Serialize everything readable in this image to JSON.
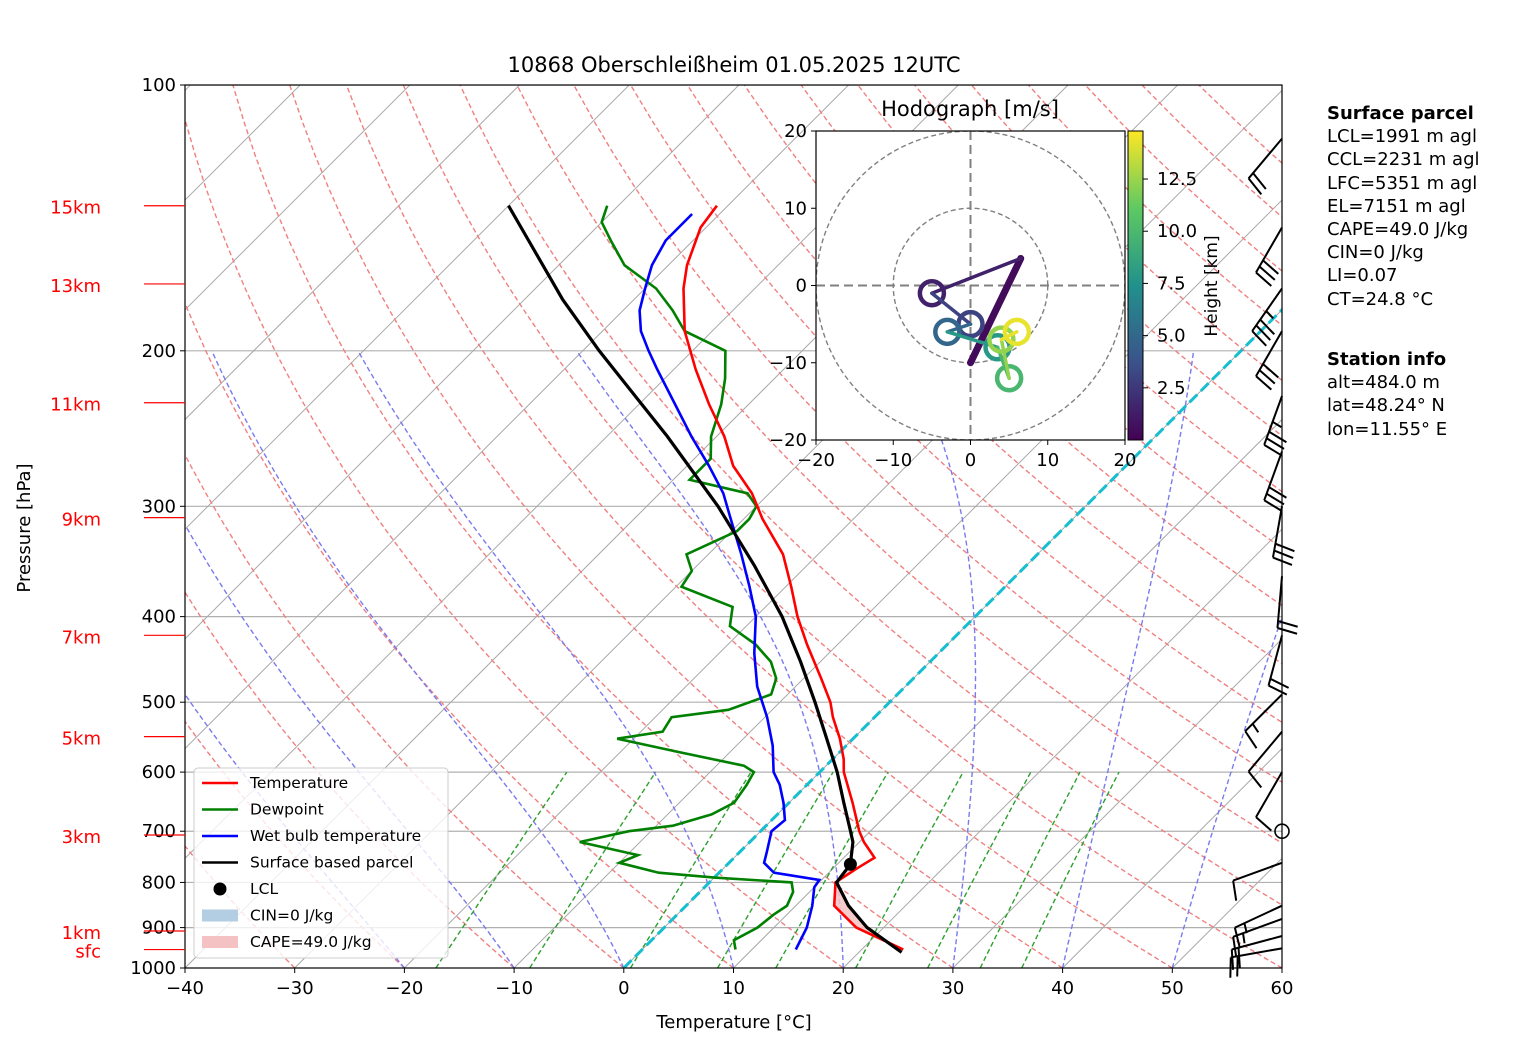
{
  "title": "10868 Oberschleißheim 01.05.2025 12UTC",
  "xlabel": "Temperature [°C]",
  "ylabel": "Pressure [hPa]",
  "surface_parcel": {
    "heading": "Surface parcel",
    "lines": [
      "LCL=1991 m agl",
      "CCL=2231 m agl",
      "LFC=5351 m agl",
      "EL=7151 m agl",
      "CAPE=49.0 J/kg",
      "CIN=0 J/kg",
      "LI=0.07",
      "CT=24.8 °C"
    ]
  },
  "station_info": {
    "heading": "Station info",
    "lines": [
      "alt=484.0 m",
      "lat=48.24° N",
      "lon=11.55° E"
    ]
  },
  "hodograph": {
    "title": "Hodograph [m/s]",
    "xlim": [
      -20,
      20
    ],
    "ylim": [
      -20,
      20
    ],
    "xticks": [
      "−20",
      "−10",
      "0",
      "10",
      "20"
    ],
    "yticks": [
      "20",
      "10",
      "0",
      "−10",
      "−20"
    ],
    "colorbar_label": "Height [km]",
    "colorbar_ticks": [
      "12.5",
      "10.0",
      "7.5",
      "5.0",
      "2.5"
    ]
  },
  "height_labels": [
    {
      "label": "15km",
      "p": 137
    },
    {
      "label": "13km",
      "p": 168
    },
    {
      "label": "11km",
      "p": 229
    },
    {
      "label": "9km",
      "p": 309
    },
    {
      "label": "7km",
      "p": 420
    },
    {
      "label": "5km",
      "p": 547
    },
    {
      "label": "3km",
      "p": 707
    },
    {
      "label": "1km",
      "p": 908
    },
    {
      "label": "sfc",
      "p": 953
    }
  ],
  "legend": [
    {
      "label": "Temperature",
      "color": "#ff0000",
      "kind": "line"
    },
    {
      "label": "Dewpoint",
      "color": "#008000",
      "kind": "line"
    },
    {
      "label": "Wet bulb temperature",
      "color": "#0000ff",
      "kind": "line"
    },
    {
      "label": "Surface based parcel",
      "color": "#000000",
      "kind": "line"
    },
    {
      "label": "LCL",
      "color": "#000000",
      "kind": "dot"
    },
    {
      "label": "CIN=0 J/kg",
      "color": "#b3cde3",
      "kind": "patch"
    },
    {
      "label": "CAPE=49.0 J/kg",
      "color": "#f4c2c2",
      "kind": "patch"
    }
  ],
  "chart_data": {
    "type": "line",
    "xlim": [
      -40,
      60
    ],
    "ylim": [
      1000,
      100
    ],
    "y_scale": "log",
    "xticks": [
      "−40",
      "−30",
      "−20",
      "−10",
      "0",
      "10",
      "20",
      "30",
      "40",
      "50",
      "60"
    ],
    "yticks": [
      "100",
      "200",
      "300",
      "400",
      "500",
      "600",
      "700",
      "800",
      "900",
      "1000"
    ],
    "isotherm_tick_values": [
      -40,
      -30,
      -20,
      -10,
      0,
      10,
      20,
      30,
      40,
      50,
      60
    ],
    "temperature": [
      [
        953,
        23.8
      ],
      [
        900,
        17.5
      ],
      [
        850,
        13.5
      ],
      [
        800,
        11.5
      ],
      [
        770,
        12.2
      ],
      [
        750,
        12.8
      ],
      [
        720,
        10.4
      ],
      [
        700,
        9.0
      ],
      [
        650,
        5.8
      ],
      [
        600,
        2.2
      ],
      [
        580,
        1.0
      ],
      [
        550,
        -1.2
      ],
      [
        520,
        -3.8
      ],
      [
        500,
        -5.4
      ],
      [
        470,
        -8.4
      ],
      [
        430,
        -12.8
      ],
      [
        400,
        -16.2
      ],
      [
        370,
        -19.5
      ],
      [
        340,
        -23.2
      ],
      [
        310,
        -28.3
      ],
      [
        290,
        -31.6
      ],
      [
        270,
        -35.8
      ],
      [
        250,
        -39.3
      ],
      [
        230,
        -43.6
      ],
      [
        210,
        -48.0
      ],
      [
        190,
        -52.5
      ],
      [
        170,
        -56.5
      ],
      [
        160,
        -58.3
      ],
      [
        145,
        -60.5
      ],
      [
        137,
        -61.0
      ]
    ],
    "dewpoint": [
      [
        953,
        8.5
      ],
      [
        930,
        7.5
      ],
      [
        900,
        8.5
      ],
      [
        870,
        8.8
      ],
      [
        850,
        9.2
      ],
      [
        820,
        8.5
      ],
      [
        800,
        7.5
      ],
      [
        790,
        0.0
      ],
      [
        780,
        -5.5
      ],
      [
        760,
        -10.0
      ],
      [
        745,
        -9.0
      ],
      [
        720,
        -15.5
      ],
      [
        700,
        -12.0
      ],
      [
        690,
        -8.5
      ],
      [
        670,
        -6.0
      ],
      [
        650,
        -5.0
      ],
      [
        620,
        -5.5
      ],
      [
        600,
        -6.0
      ],
      [
        590,
        -7.5
      ],
      [
        570,
        -14.5
      ],
      [
        550,
        -21.5
      ],
      [
        540,
        -18.0
      ],
      [
        520,
        -18.5
      ],
      [
        510,
        -14.0
      ],
      [
        490,
        -11.5
      ],
      [
        470,
        -12.5
      ],
      [
        450,
        -14.5
      ],
      [
        430,
        -17.5
      ],
      [
        410,
        -21.5
      ],
      [
        390,
        -23.0
      ],
      [
        370,
        -29.5
      ],
      [
        355,
        -30.0
      ],
      [
        340,
        -32.0
      ],
      [
        320,
        -29.5
      ],
      [
        310,
        -29.5
      ],
      [
        300,
        -30.0
      ],
      [
        290,
        -32.0
      ],
      [
        280,
        -38.5
      ],
      [
        265,
        -38.5
      ],
      [
        250,
        -40.5
      ],
      [
        230,
        -42.5
      ],
      [
        215,
        -44.5
      ],
      [
        200,
        -47.0
      ],
      [
        190,
        -52.5
      ],
      [
        180,
        -55.5
      ],
      [
        170,
        -59.0
      ],
      [
        160,
        -64.0
      ],
      [
        150,
        -67.5
      ],
      [
        143,
        -70.0
      ],
      [
        137,
        -71.0
      ]
    ],
    "wetbulb": [
      [
        953,
        14.0
      ],
      [
        900,
        13.0
      ],
      [
        850,
        11.5
      ],
      [
        810,
        10.0
      ],
      [
        795,
        9.8
      ],
      [
        780,
        5.0
      ],
      [
        760,
        3.2
      ],
      [
        740,
        2.5
      ],
      [
        700,
        1.0
      ],
      [
        680,
        1.2
      ],
      [
        650,
        -0.5
      ],
      [
        620,
        -2.5
      ],
      [
        600,
        -4.2
      ],
      [
        560,
        -6.7
      ],
      [
        520,
        -9.8
      ],
      [
        480,
        -13.5
      ],
      [
        440,
        -16.8
      ],
      [
        400,
        -20.0
      ],
      [
        370,
        -23.3
      ],
      [
        340,
        -27.0
      ],
      [
        310,
        -31.2
      ],
      [
        290,
        -34.2
      ],
      [
        270,
        -38.0
      ],
      [
        250,
        -42.3
      ],
      [
        230,
        -46.7
      ],
      [
        210,
        -51.5
      ],
      [
        200,
        -54.0
      ],
      [
        190,
        -56.5
      ],
      [
        180,
        -58.5
      ],
      [
        170,
        -60.0
      ],
      [
        160,
        -61.5
      ],
      [
        150,
        -62.5
      ],
      [
        140,
        -62.5
      ]
    ],
    "parcel": [
      [
        960,
        23.9
      ],
      [
        900,
        18.5
      ],
      [
        850,
        14.8
      ],
      [
        800,
        11.6
      ],
      [
        763,
        11.2
      ],
      [
        720,
        9.4
      ],
      [
        700,
        8.2
      ],
      [
        650,
        5.0
      ],
      [
        600,
        1.6
      ],
      [
        550,
        -2.4
      ],
      [
        500,
        -6.8
      ],
      [
        450,
        -11.8
      ],
      [
        400,
        -17.6
      ],
      [
        350,
        -24.8
      ],
      [
        300,
        -33.5
      ],
      [
        250,
        -44.5
      ],
      [
        200,
        -58.5
      ],
      [
        175,
        -66.5
      ],
      [
        150,
        -75.0
      ],
      [
        137,
        -80.0
      ]
    ],
    "lcl": {
      "p": 763,
      "t": 11.2
    },
    "cape_j_kg": 49.0,
    "cin_j_kg": 0,
    "wind_barbs": [
      {
        "p": 950,
        "dir": 260,
        "kt": 22
      },
      {
        "p": 920,
        "dir": 255,
        "kt": 18
      },
      {
        "p": 880,
        "dir": 250,
        "kt": 16
      },
      {
        "p": 850,
        "dir": 245,
        "kt": 14
      },
      {
        "p": 760,
        "dir": 250,
        "kt": 10
      },
      {
        "p": 700,
        "dir": 0,
        "kt": 0
      },
      {
        "p": 600,
        "dir": 210,
        "kt": 8
      },
      {
        "p": 540,
        "dir": 220,
        "kt": 12
      },
      {
        "p": 490,
        "dir": 225,
        "kt": 14
      },
      {
        "p": 420,
        "dir": 195,
        "kt": 18
      },
      {
        "p": 360,
        "dir": 185,
        "kt": 20
      },
      {
        "p": 300,
        "dir": 190,
        "kt": 28
      },
      {
        "p": 260,
        "dir": 200,
        "kt": 30
      },
      {
        "p": 225,
        "dir": 200,
        "kt": 34
      },
      {
        "p": 190,
        "dir": 210,
        "kt": 32
      },
      {
        "p": 170,
        "dir": 215,
        "kt": 34
      },
      {
        "p": 145,
        "dir": 210,
        "kt": 28
      },
      {
        "p": 115,
        "dir": 220,
        "kt": 20
      }
    ],
    "hodograph_segments": [
      {
        "height_km": 0.5,
        "u": 6.5,
        "v": 3.5,
        "u0": 0.0,
        "v0": -10.0
      },
      {
        "height_km": 1.5,
        "u": -5.0,
        "v": -1.0
      },
      {
        "height_km": 3.0,
        "u": 0.0,
        "v": -5.0
      },
      {
        "height_km": 5.0,
        "u": -3.0,
        "v": -6.0
      },
      {
        "height_km": 8.0,
        "u": 3.5,
        "v": -8.0
      },
      {
        "height_km": 10.0,
        "u": 5.0,
        "v": -12.0
      },
      {
        "height_km": 12.5,
        "u": 4.0,
        "v": -7.0
      },
      {
        "height_km": 14.5,
        "u": 6.0,
        "v": -6.0
      }
    ]
  }
}
